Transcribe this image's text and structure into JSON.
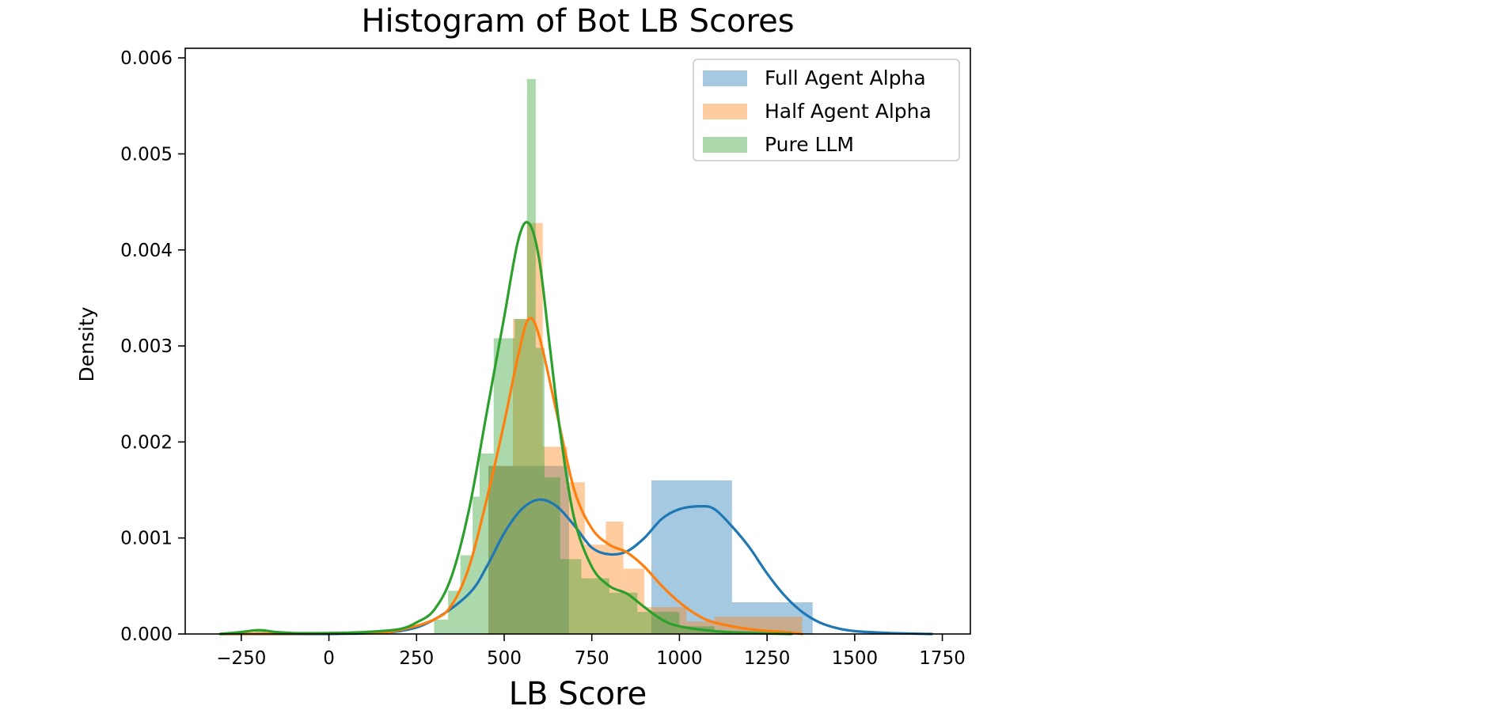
{
  "chart_data": {
    "type": "histogram",
    "title": "Histogram of Bot LB Scores",
    "xlabel": "LB Score",
    "ylabel": "Density",
    "xlim": [
      -410,
      1830
    ],
    "ylim": [
      0,
      0.0061
    ],
    "x_ticks": [
      -250,
      0,
      250,
      500,
      750,
      1000,
      1250,
      1500,
      1750
    ],
    "y_ticks": [
      0.0,
      0.001,
      0.002,
      0.003,
      0.004,
      0.005,
      0.006
    ],
    "y_tick_labels": [
      "0.000",
      "0.001",
      "0.002",
      "0.003",
      "0.004",
      "0.005",
      "0.006"
    ],
    "legend_position": "top-right",
    "series": [
      {
        "name": "Full Agent Alpha",
        "color": "#1f77b4",
        "bins": [
          {
            "x0": 455,
            "x1": 685,
            "density": 0.00175
          },
          {
            "x0": 685,
            "x1": 920,
            "density": 0.0
          },
          {
            "x0": 920,
            "x1": 1150,
            "density": 0.0016
          },
          {
            "x0": 1150,
            "x1": 1380,
            "density": 0.00033
          }
        ],
        "kde": [
          [
            -310,
            0.0
          ],
          [
            0,
            0.0
          ],
          [
            200,
            3e-05
          ],
          [
            300,
            0.00015
          ],
          [
            400,
            0.00042
          ],
          [
            450,
            0.0007
          ],
          [
            500,
            0.00105
          ],
          [
            550,
            0.0013
          ],
          [
            600,
            0.0014
          ],
          [
            650,
            0.00133
          ],
          [
            700,
            0.00113
          ],
          [
            750,
            0.0009
          ],
          [
            800,
            0.00083
          ],
          [
            850,
            0.00086
          ],
          [
            900,
            0.001
          ],
          [
            950,
            0.0012
          ],
          [
            1000,
            0.0013
          ],
          [
            1060,
            0.00133
          ],
          [
            1100,
            0.0013
          ],
          [
            1150,
            0.00112
          ],
          [
            1200,
            0.0009
          ],
          [
            1250,
            0.00063
          ],
          [
            1300,
            0.0004
          ],
          [
            1350,
            0.00023
          ],
          [
            1400,
            0.00012
          ],
          [
            1450,
            6e-05
          ],
          [
            1500,
            3e-05
          ],
          [
            1600,
            1e-05
          ],
          [
            1720,
            0.0
          ]
        ]
      },
      {
        "name": "Half Agent Alpha",
        "color": "#ff7f0e",
        "bins": [
          {
            "x0": 455,
            "x1": 525,
            "density": 0.00175
          },
          {
            "x0": 525,
            "x1": 565,
            "density": 0.00328
          },
          {
            "x0": 565,
            "x1": 610,
            "density": 0.00428
          },
          {
            "x0": 610,
            "x1": 680,
            "density": 0.00195
          },
          {
            "x0": 680,
            "x1": 730,
            "density": 0.00158
          },
          {
            "x0": 730,
            "x1": 790,
            "density": 0.00093
          },
          {
            "x0": 790,
            "x1": 840,
            "density": 0.00117
          },
          {
            "x0": 840,
            "x1": 900,
            "density": 0.00068
          },
          {
            "x0": 900,
            "x1": 1020,
            "density": 0.00028
          },
          {
            "x0": 1020,
            "x1": 1100,
            "density": 0.00013
          },
          {
            "x0": 1100,
            "x1": 1350,
            "density": 0.00018
          }
        ],
        "kde": [
          [
            -310,
            0.0
          ],
          [
            100,
            1e-05
          ],
          [
            200,
            4e-05
          ],
          [
            300,
            0.00015
          ],
          [
            350,
            0.0003
          ],
          [
            400,
            0.0007
          ],
          [
            450,
            0.0014
          ],
          [
            500,
            0.0022
          ],
          [
            540,
            0.0029
          ],
          [
            570,
            0.00328
          ],
          [
            600,
            0.0031
          ],
          [
            650,
            0.0023
          ],
          [
            700,
            0.0015
          ],
          [
            750,
            0.0011
          ],
          [
            800,
            0.00093
          ],
          [
            850,
            0.00085
          ],
          [
            900,
            0.0007
          ],
          [
            950,
            0.0005
          ],
          [
            1000,
            0.00033
          ],
          [
            1050,
            0.0002
          ],
          [
            1100,
            0.00012
          ],
          [
            1200,
            5e-05
          ],
          [
            1300,
            2e-05
          ],
          [
            1350,
            0.0
          ]
        ]
      },
      {
        "name": "Pure LLM",
        "color": "#2ca02c",
        "bins": [
          {
            "x0": -210,
            "x1": -180,
            "density": 5e-05
          },
          {
            "x0": 300,
            "x1": 340,
            "density": 0.00015
          },
          {
            "x0": 340,
            "x1": 375,
            "density": 0.00045
          },
          {
            "x0": 375,
            "x1": 410,
            "density": 0.00082
          },
          {
            "x0": 410,
            "x1": 430,
            "density": 0.00143
          },
          {
            "x0": 430,
            "x1": 470,
            "density": 0.00188
          },
          {
            "x0": 470,
            "x1": 530,
            "density": 0.00308
          },
          {
            "x0": 530,
            "x1": 565,
            "density": 0.00328
          },
          {
            "x0": 565,
            "x1": 590,
            "density": 0.00578
          },
          {
            "x0": 590,
            "x1": 615,
            "density": 0.00298
          },
          {
            "x0": 615,
            "x1": 660,
            "density": 0.00163
          },
          {
            "x0": 660,
            "x1": 720,
            "density": 0.00078
          },
          {
            "x0": 720,
            "x1": 800,
            "density": 0.00058
          },
          {
            "x0": 800,
            "x1": 880,
            "density": 0.00043
          },
          {
            "x0": 880,
            "x1": 1000,
            "density": 0.00023
          },
          {
            "x0": 1000,
            "x1": 1100,
            "density": 8e-05
          },
          {
            "x0": 1100,
            "x1": 1320,
            "density": 3e-05
          }
        ],
        "kde": [
          [
            -310,
            0.0
          ],
          [
            -250,
            2e-05
          ],
          [
            -200,
            4e-05
          ],
          [
            -150,
            2e-05
          ],
          [
            -100,
            1e-05
          ],
          [
            0,
            1e-05
          ],
          [
            100,
            2e-05
          ],
          [
            200,
            5e-05
          ],
          [
            250,
            0.00012
          ],
          [
            300,
            0.00025
          ],
          [
            350,
            0.0006
          ],
          [
            400,
            0.0013
          ],
          [
            450,
            0.0023
          ],
          [
            500,
            0.0033
          ],
          [
            540,
            0.0041
          ],
          [
            570,
            0.00428
          ],
          [
            600,
            0.0039
          ],
          [
            630,
            0.003
          ],
          [
            660,
            0.0021
          ],
          [
            700,
            0.0012
          ],
          [
            750,
            0.0007
          ],
          [
            800,
            0.0005
          ],
          [
            850,
            0.00042
          ],
          [
            900,
            0.00028
          ],
          [
            950,
            0.00015
          ],
          [
            1000,
            8e-05
          ],
          [
            1100,
            3e-05
          ],
          [
            1200,
            1e-05
          ],
          [
            1320,
            0.0
          ]
        ]
      }
    ]
  }
}
